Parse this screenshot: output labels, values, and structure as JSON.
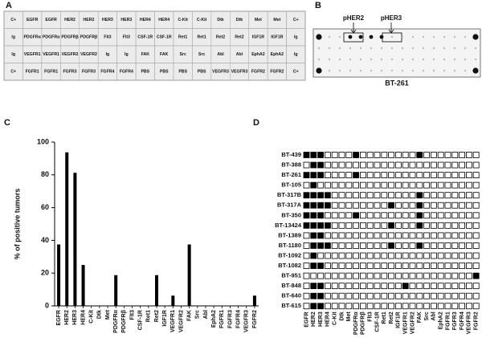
{
  "panel_a": {
    "label": "A",
    "grid": [
      [
        "C+",
        "EGFR",
        "EGFR",
        "HER2",
        "HER2",
        "HER3",
        "HER3",
        "HER4",
        "HER4",
        "C-Kit",
        "C-Kit",
        "Dtk",
        "Dtk",
        "Met",
        "Met",
        "C+"
      ],
      [
        "Ig",
        "PDGFRα",
        "PDGFRα",
        "PDGFRβ",
        "PDGFRβ",
        "Flt3",
        "Flt3",
        "CSF-1R",
        "CSF-1R",
        "Ret1",
        "Ret1",
        "Ret2",
        "Ret2",
        "IGF1R",
        "IGF1R",
        "Ig"
      ],
      [
        "Ig",
        "VEGFR1",
        "VEGFR1",
        "VEGFR2",
        "VEGFR2",
        "Ig",
        "Ig",
        "FAK",
        "FAK",
        "Src",
        "Src",
        "Abl",
        "Abl",
        "EphA2",
        "EphA2",
        "Ig"
      ],
      [
        "C+",
        "FGFR1",
        "FGFR1",
        "FGFR3",
        "FGFR3",
        "FGFR4",
        "FGFR4",
        "PBS",
        "PBS",
        "PBS",
        "PBS",
        "VEGFR3",
        "VEGFR3",
        "FGFR2",
        "FGFR2",
        "C+"
      ]
    ]
  },
  "panel_b": {
    "label": "B",
    "annotations": [
      "pHER2",
      "pHER3"
    ],
    "caption": "BT-261"
  },
  "chart_data": {
    "type": "bar",
    "panel_label": "C",
    "y_label": "% of positive tumors",
    "categories": [
      "EGFR",
      "HER2",
      "HER3",
      "HER4",
      "C-Kit",
      "Dtk",
      "Met",
      "PDGFRα",
      "PDGFRβ",
      "Flt3",
      "CSF-1R",
      "Ret1",
      "Ret2",
      "IGF1R",
      "VEGFR1",
      "VEGFR2",
      "FAK",
      "Src",
      "Abl",
      "EphA2",
      "FGFR1",
      "FGFR3",
      "FGFR4",
      "VEGFR3",
      "FGFR2"
    ],
    "values": [
      37.5,
      93.75,
      81.25,
      25,
      0,
      0,
      0,
      18.75,
      0,
      0,
      0,
      0,
      18.75,
      0,
      6.25,
      0,
      37.5,
      0,
      0,
      0,
      0,
      0,
      0,
      0,
      6.25
    ],
    "color": "#000000",
    "ylim": [
      0,
      100
    ],
    "yticks": [
      0,
      20,
      40,
      60,
      80,
      100
    ]
  },
  "panel_d": {
    "label": "D",
    "rows": [
      "BT-439",
      "BT-388",
      "BT-261",
      "BT-105",
      "BT-317B",
      "BT-317A",
      "BT-350",
      "BT-13424",
      "BT-1389",
      "BT-1180",
      "BT-1092",
      "BT-1082",
      "BT-951",
      "BT-848",
      "BT-640",
      "BT-615"
    ],
    "columns": [
      "EGFR",
      "HER2",
      "HER3",
      "HER4",
      "C-Kit",
      "Dtk",
      "Met",
      "PDGFRα",
      "PDGFRβ",
      "Flt3",
      "CSF-1R",
      "Ret1",
      "Ret2",
      "IGF1R",
      "VEGFR1",
      "VEGFR2",
      "FAK",
      "Src",
      "Abl",
      "EphA2",
      "FGFR1",
      "FGFR3",
      "FGFR4",
      "VEGFR3",
      "FGFR2"
    ],
    "cells": [
      [
        1,
        1,
        1,
        0,
        0,
        0,
        0,
        1,
        0,
        0,
        0,
        0,
        0,
        0,
        0,
        0,
        1,
        0,
        0,
        0,
        0,
        0,
        0,
        0,
        0
      ],
      [
        0,
        1,
        1,
        0,
        0,
        0,
        0,
        0,
        0,
        0,
        0,
        0,
        0,
        0,
        0,
        0,
        0,
        0,
        0,
        0,
        0,
        0,
        0,
        0,
        0
      ],
      [
        1,
        1,
        1,
        0,
        0,
        0,
        0,
        1,
        0,
        0,
        0,
        0,
        0,
        0,
        0,
        0,
        0,
        0,
        0,
        0,
        0,
        0,
        0,
        0,
        0
      ],
      [
        0,
        1,
        0,
        0,
        0,
        0,
        0,
        0,
        0,
        0,
        0,
        0,
        0,
        0,
        0,
        0,
        0,
        0,
        0,
        0,
        0,
        0,
        0,
        0,
        0
      ],
      [
        1,
        1,
        1,
        1,
        0,
        0,
        0,
        0,
        0,
        0,
        0,
        0,
        0,
        0,
        0,
        0,
        1,
        0,
        0,
        0,
        0,
        0,
        0,
        0,
        0
      ],
      [
        1,
        1,
        1,
        1,
        0,
        0,
        0,
        0,
        0,
        0,
        0,
        0,
        1,
        0,
        0,
        0,
        1,
        0,
        0,
        0,
        0,
        0,
        0,
        0,
        0
      ],
      [
        1,
        1,
        1,
        0,
        0,
        0,
        0,
        1,
        0,
        0,
        0,
        0,
        0,
        0,
        0,
        0,
        1,
        0,
        0,
        0,
        0,
        0,
        0,
        0,
        0
      ],
      [
        1,
        1,
        1,
        1,
        0,
        0,
        0,
        0,
        0,
        0,
        0,
        0,
        1,
        0,
        0,
        0,
        1,
        0,
        0,
        0,
        0,
        0,
        0,
        0,
        0
      ],
      [
        0,
        1,
        1,
        0,
        0,
        0,
        0,
        0,
        0,
        0,
        0,
        0,
        0,
        0,
        0,
        0,
        0,
        0,
        0,
        0,
        0,
        0,
        0,
        0,
        0
      ],
      [
        0,
        1,
        1,
        1,
        0,
        0,
        0,
        0,
        0,
        0,
        0,
        0,
        1,
        0,
        0,
        0,
        1,
        0,
        0,
        0,
        0,
        0,
        0,
        0,
        0
      ],
      [
        0,
        1,
        0,
        0,
        0,
        0,
        0,
        0,
        0,
        0,
        0,
        0,
        0,
        0,
        0,
        0,
        0,
        0,
        0,
        0,
        0,
        0,
        0,
        0,
        0
      ],
      [
        0,
        1,
        1,
        0,
        0,
        0,
        0,
        0,
        0,
        0,
        0,
        0,
        0,
        0,
        0,
        0,
        0,
        0,
        0,
        0,
        0,
        0,
        0,
        0,
        0
      ],
      [
        0,
        0,
        0,
        0,
        0,
        0,
        0,
        0,
        0,
        0,
        0,
        0,
        0,
        0,
        0,
        0,
        0,
        0,
        0,
        0,
        0,
        0,
        0,
        0,
        1
      ],
      [
        0,
        1,
        1,
        0,
        0,
        0,
        0,
        0,
        0,
        0,
        0,
        0,
        0,
        0,
        1,
        0,
        0,
        0,
        0,
        0,
        0,
        0,
        0,
        0,
        0
      ],
      [
        0,
        1,
        1,
        0,
        0,
        0,
        0,
        0,
        0,
        0,
        0,
        0,
        0,
        0,
        0,
        0,
        0,
        0,
        0,
        0,
        0,
        0,
        0,
        0,
        0
      ],
      [
        0,
        1,
        1,
        0,
        0,
        0,
        0,
        0,
        0,
        0,
        0,
        0,
        0,
        0,
        0,
        0,
        0,
        0,
        0,
        0,
        0,
        0,
        0,
        0,
        0
      ]
    ]
  }
}
